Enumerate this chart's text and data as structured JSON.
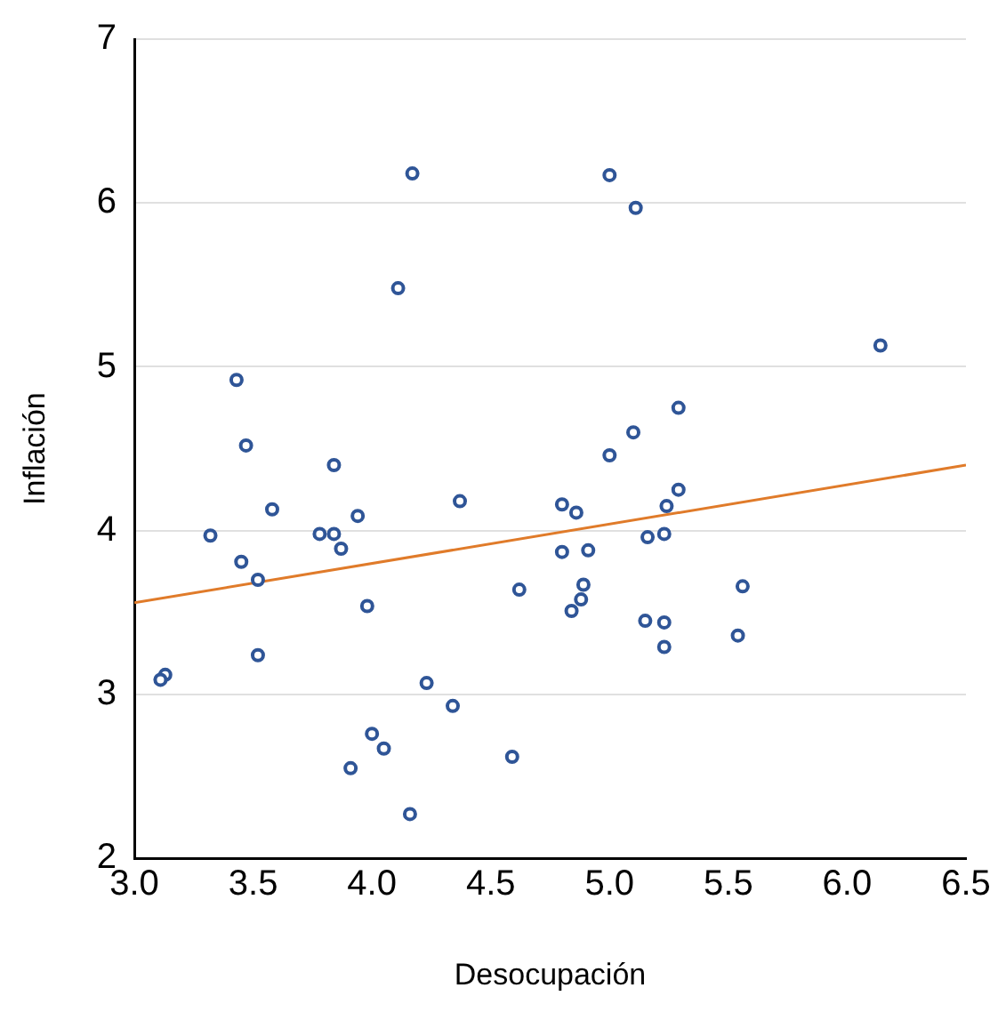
{
  "chart_data": {
    "type": "scatter",
    "xlabel": "Desocupación",
    "ylabel": "Inflación",
    "xlim": [
      3.0,
      6.5
    ],
    "xticks": [
      {
        "value": 3,
        "label": "3.0"
      },
      3.5,
      {
        "value": 4,
        "label": "4.0"
      },
      4.5,
      {
        "value": 5,
        "label": "5.0"
      },
      5.5,
      {
        "value": 6,
        "label": "6.0"
      },
      6.5
    ],
    "ylim": [
      2,
      7
    ],
    "yticks": [
      2,
      3,
      4,
      5,
      6,
      7
    ],
    "grid": "y",
    "series": [
      {
        "type": "scatter",
        "marker": "circle",
        "color": "#2f5597",
        "x": [
          4.17,
          5.0,
          5.11,
          4.11,
          6.14,
          3.43,
          5.29,
          3.47,
          5.1,
          5.0,
          3.84,
          5.29,
          3.58,
          3.94,
          4.37,
          4.8,
          4.86,
          5.24,
          3.32,
          3.78,
          3.84,
          3.87,
          5.16,
          5.23,
          4.8,
          4.91,
          3.45,
          3.52,
          5.56,
          4.62,
          4.89,
          4.88,
          3.98,
          4.84,
          5.15,
          5.23,
          5.54,
          5.23,
          3.52,
          3.13,
          3.11,
          4.23,
          4.34,
          4.0,
          4.05,
          3.91,
          4.59,
          4.16
        ],
        "values": [
          6.18,
          6.17,
          5.97,
          5.48,
          5.13,
          4.92,
          4.75,
          4.52,
          4.6,
          4.46,
          4.4,
          4.25,
          4.13,
          4.09,
          4.18,
          4.16,
          4.11,
          4.15,
          3.97,
          3.98,
          3.98,
          3.89,
          3.96,
          3.98,
          3.87,
          3.88,
          3.81,
          3.7,
          3.66,
          3.64,
          3.67,
          3.58,
          3.54,
          3.51,
          3.45,
          3.44,
          3.36,
          3.29,
          3.24,
          3.12,
          3.09,
          3.07,
          2.93,
          2.76,
          2.67,
          2.55,
          2.62,
          2.27
        ]
      },
      {
        "type": "line",
        "color": "#e07b2a",
        "x": [
          3.0,
          6.5
        ],
        "values": [
          3.56,
          4.4
        ]
      }
    ]
  }
}
